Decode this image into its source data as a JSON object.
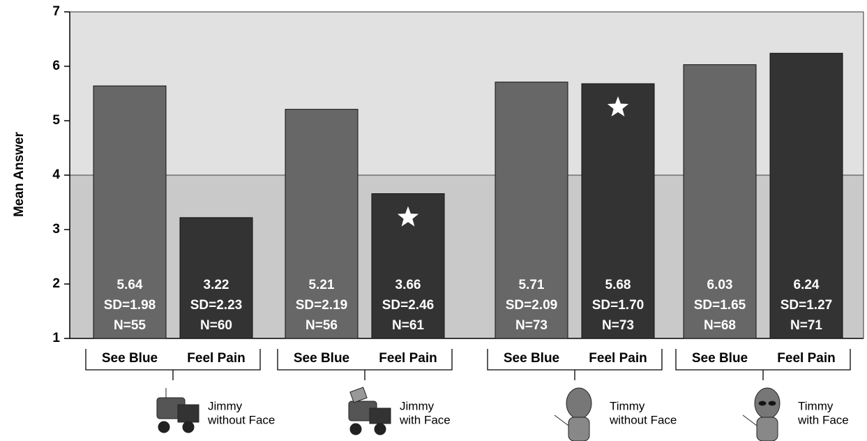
{
  "chart_data": {
    "type": "bar",
    "y_label": "Mean Answer",
    "categories": [
      "See Blue",
      "Feel Pain",
      "See Blue",
      "Feel Pain",
      "See Blue",
      "Feel Pain",
      "See Blue",
      "Feel Pain"
    ],
    "values": [
      5.64,
      3.22,
      5.21,
      3.66,
      5.71,
      5.68,
      6.03,
      6.24
    ],
    "sd_labels": [
      "SD=1.98",
      "SD=2.23",
      "SD=2.19",
      "SD=2.46",
      "SD=2.09",
      "SD=1.70",
      "SD=1.65",
      "SD=1.27"
    ],
    "n_labels": [
      "N=55",
      "N=60",
      "N=56",
      "N=61",
      "N=73",
      "N=73",
      "N=68",
      "N=71"
    ],
    "colors": [
      "#676767",
      "#333333",
      "#676767",
      "#333333",
      "#676767",
      "#333333",
      "#676767",
      "#333333"
    ],
    "starred": [
      false,
      false,
      false,
      true,
      false,
      true,
      false,
      false
    ],
    "groups": [
      [
        "Jimmy",
        "without Face"
      ],
      [
        "Jimmy",
        "with Face"
      ],
      [
        "Timmy",
        "without Face"
      ],
      [
        "Timmy",
        "with Face"
      ]
    ],
    "ylim": [
      1,
      7
    ],
    "yticks": [
      1,
      2,
      3,
      4,
      5,
      6,
      7
    ],
    "reference_line": 4
  }
}
